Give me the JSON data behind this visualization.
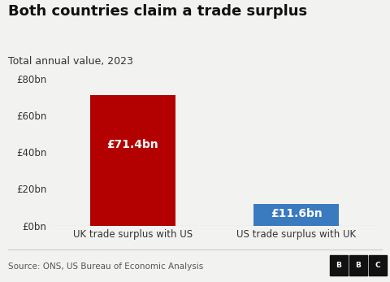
{
  "title": "Both countries claim a trade surplus",
  "subtitle": "Total annual value, 2023",
  "categories": [
    "UK trade surplus with US",
    "US trade surplus with UK"
  ],
  "values": [
    71.4,
    11.6
  ],
  "bar_colors": [
    "#b30000",
    "#3a7abf"
  ],
  "bar_labels": [
    "£71.4bn",
    "£11.6bn"
  ],
  "ylim": [
    0,
    80
  ],
  "yticks": [
    0,
    20,
    40,
    60,
    80
  ],
  "ytick_labels": [
    "£0bn",
    "£20bn",
    "£40bn",
    "£60bn",
    "£80bn"
  ],
  "source_text": "Source: ONS, US Bureau of Economic Analysis",
  "bg_color": "#f2f2f0",
  "title_fontsize": 13,
  "subtitle_fontsize": 9,
  "bar_label_fontsize": 10,
  "tick_fontsize": 8.5,
  "source_fontsize": 7.5,
  "bbc_letters": [
    "B",
    "B",
    "C"
  ]
}
